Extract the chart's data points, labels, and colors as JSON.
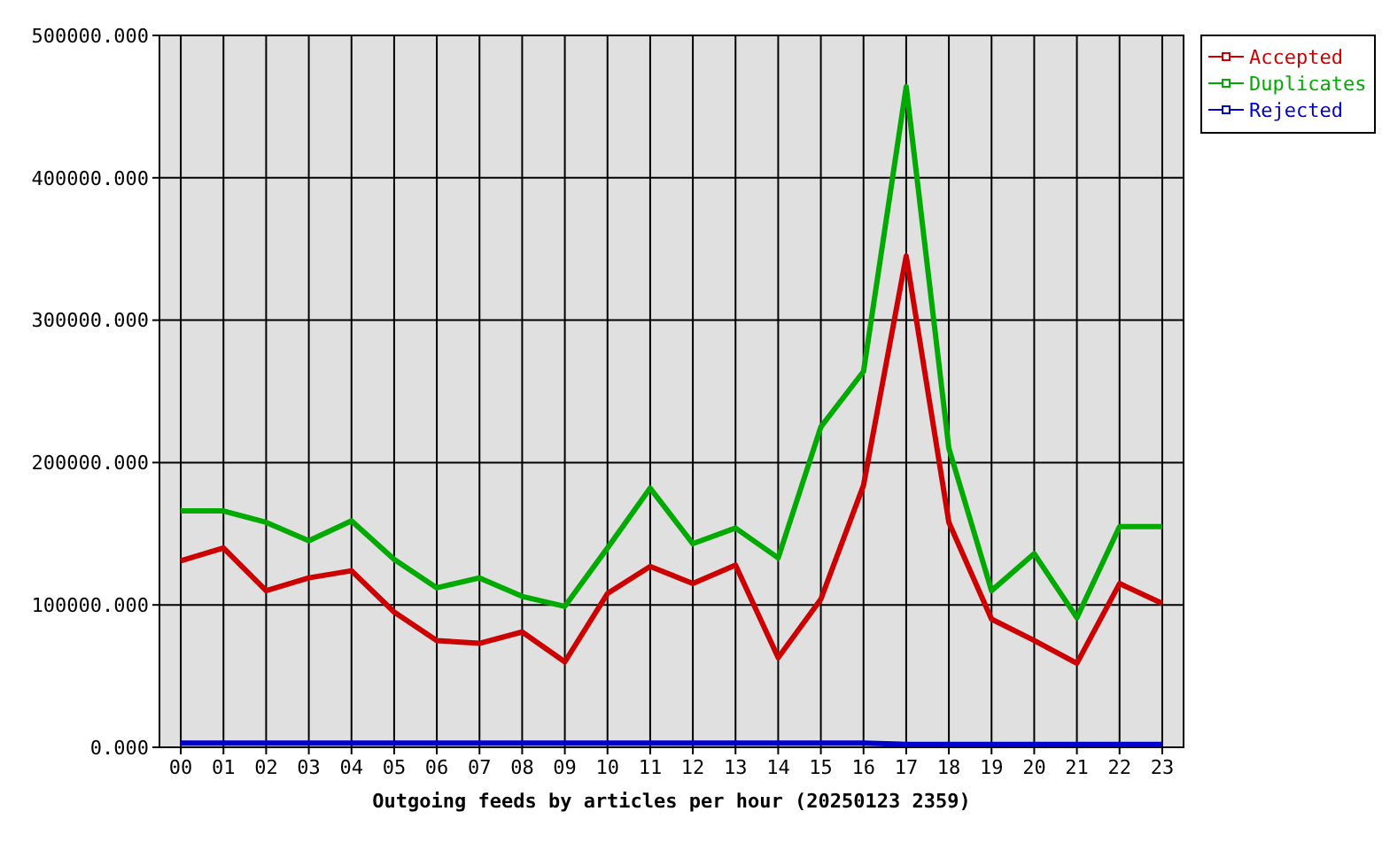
{
  "chart_data": {
    "type": "line",
    "xlabel": "Outgoing feeds by articles per hour (20250123 2359)",
    "categories": [
      "00",
      "01",
      "02",
      "03",
      "04",
      "05",
      "06",
      "07",
      "08",
      "09",
      "10",
      "11",
      "12",
      "13",
      "14",
      "15",
      "16",
      "17",
      "18",
      "19",
      "20",
      "21",
      "22",
      "23"
    ],
    "ylim": [
      0,
      500000
    ],
    "yticks": [
      {
        "value": 0,
        "label": "0.000"
      },
      {
        "value": 100000,
        "label": "100000.000"
      },
      {
        "value": 200000,
        "label": "200000.000"
      },
      {
        "value": 300000,
        "label": "300000.000"
      },
      {
        "value": 400000,
        "label": "400000.000"
      },
      {
        "value": 500000,
        "label": "500000.000"
      }
    ],
    "grid": true,
    "legend": "top right",
    "marker": "none",
    "line_style": "solid",
    "series": [
      {
        "name": "Accepted",
        "color": "#cc0000",
        "values": [
          131000,
          140000,
          110000,
          119000,
          124000,
          95000,
          75000,
          73000,
          81000,
          60000,
          108000,
          127000,
          115000,
          128000,
          63000,
          104000,
          184000,
          345000,
          158000,
          90000,
          75000,
          59000,
          115000,
          101000
        ]
      },
      {
        "name": "Duplicates",
        "color": "#00aa00",
        "values": [
          166000,
          166000,
          158000,
          145000,
          159000,
          132000,
          112000,
          119000,
          106000,
          99000,
          140000,
          182000,
          143000,
          154000,
          133000,
          225000,
          264000,
          464000,
          210000,
          110000,
          136000,
          91000,
          155000,
          155000
        ]
      },
      {
        "name": "Rejected",
        "color": "#0000cc",
        "values": [
          3000,
          3000,
          3000,
          3000,
          3000,
          3000,
          3000,
          3000,
          3000,
          3000,
          3000,
          3000,
          3000,
          3000,
          3000,
          3000,
          3000,
          2000,
          2000,
          2000,
          2000,
          2000,
          2000,
          2000
        ]
      }
    ]
  }
}
